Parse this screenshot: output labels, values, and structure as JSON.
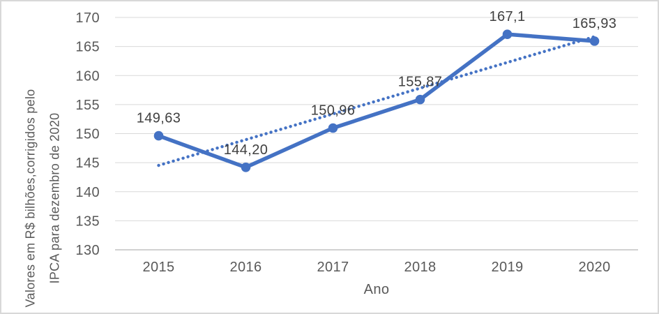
{
  "frame": {
    "background": "#ffffff",
    "border_color": "#d8d8d8"
  },
  "chart_data": {
    "type": "line",
    "categories": [
      "2015",
      "2016",
      "2017",
      "2018",
      "2019",
      "2020"
    ],
    "series": [
      {
        "name": "valores-corrigidos-ipca",
        "values": [
          149.63,
          144.2,
          150.96,
          155.87,
          167.1,
          165.93
        ],
        "point_labels": [
          "149,63",
          "144,20",
          "150,96",
          "155,87",
          "167,1",
          "165,93"
        ],
        "color": "#4472c4",
        "marker": "circle"
      }
    ],
    "trendline": {
      "type": "linear",
      "style": "dotted",
      "color": "#4472c4",
      "start_value": 144.53,
      "end_value": 166.69
    },
    "xlabel": "Ano",
    "ylabel_lines": [
      "Valores em R$ bilhões,corrigidos pelo",
      "IPCA para dezembro de 2020"
    ],
    "ylim": [
      130,
      170
    ],
    "ytick_step": 5,
    "ytick_labels": [
      "130",
      "135",
      "140",
      "145",
      "150",
      "155",
      "160",
      "165",
      "170"
    ],
    "grid": "horizontal",
    "legend_position": "none",
    "gridline_color": "#d9d9d9",
    "axisline_color": "#c2c2c2",
    "tick_color": "#595959",
    "data_label_color": "#404040"
  }
}
